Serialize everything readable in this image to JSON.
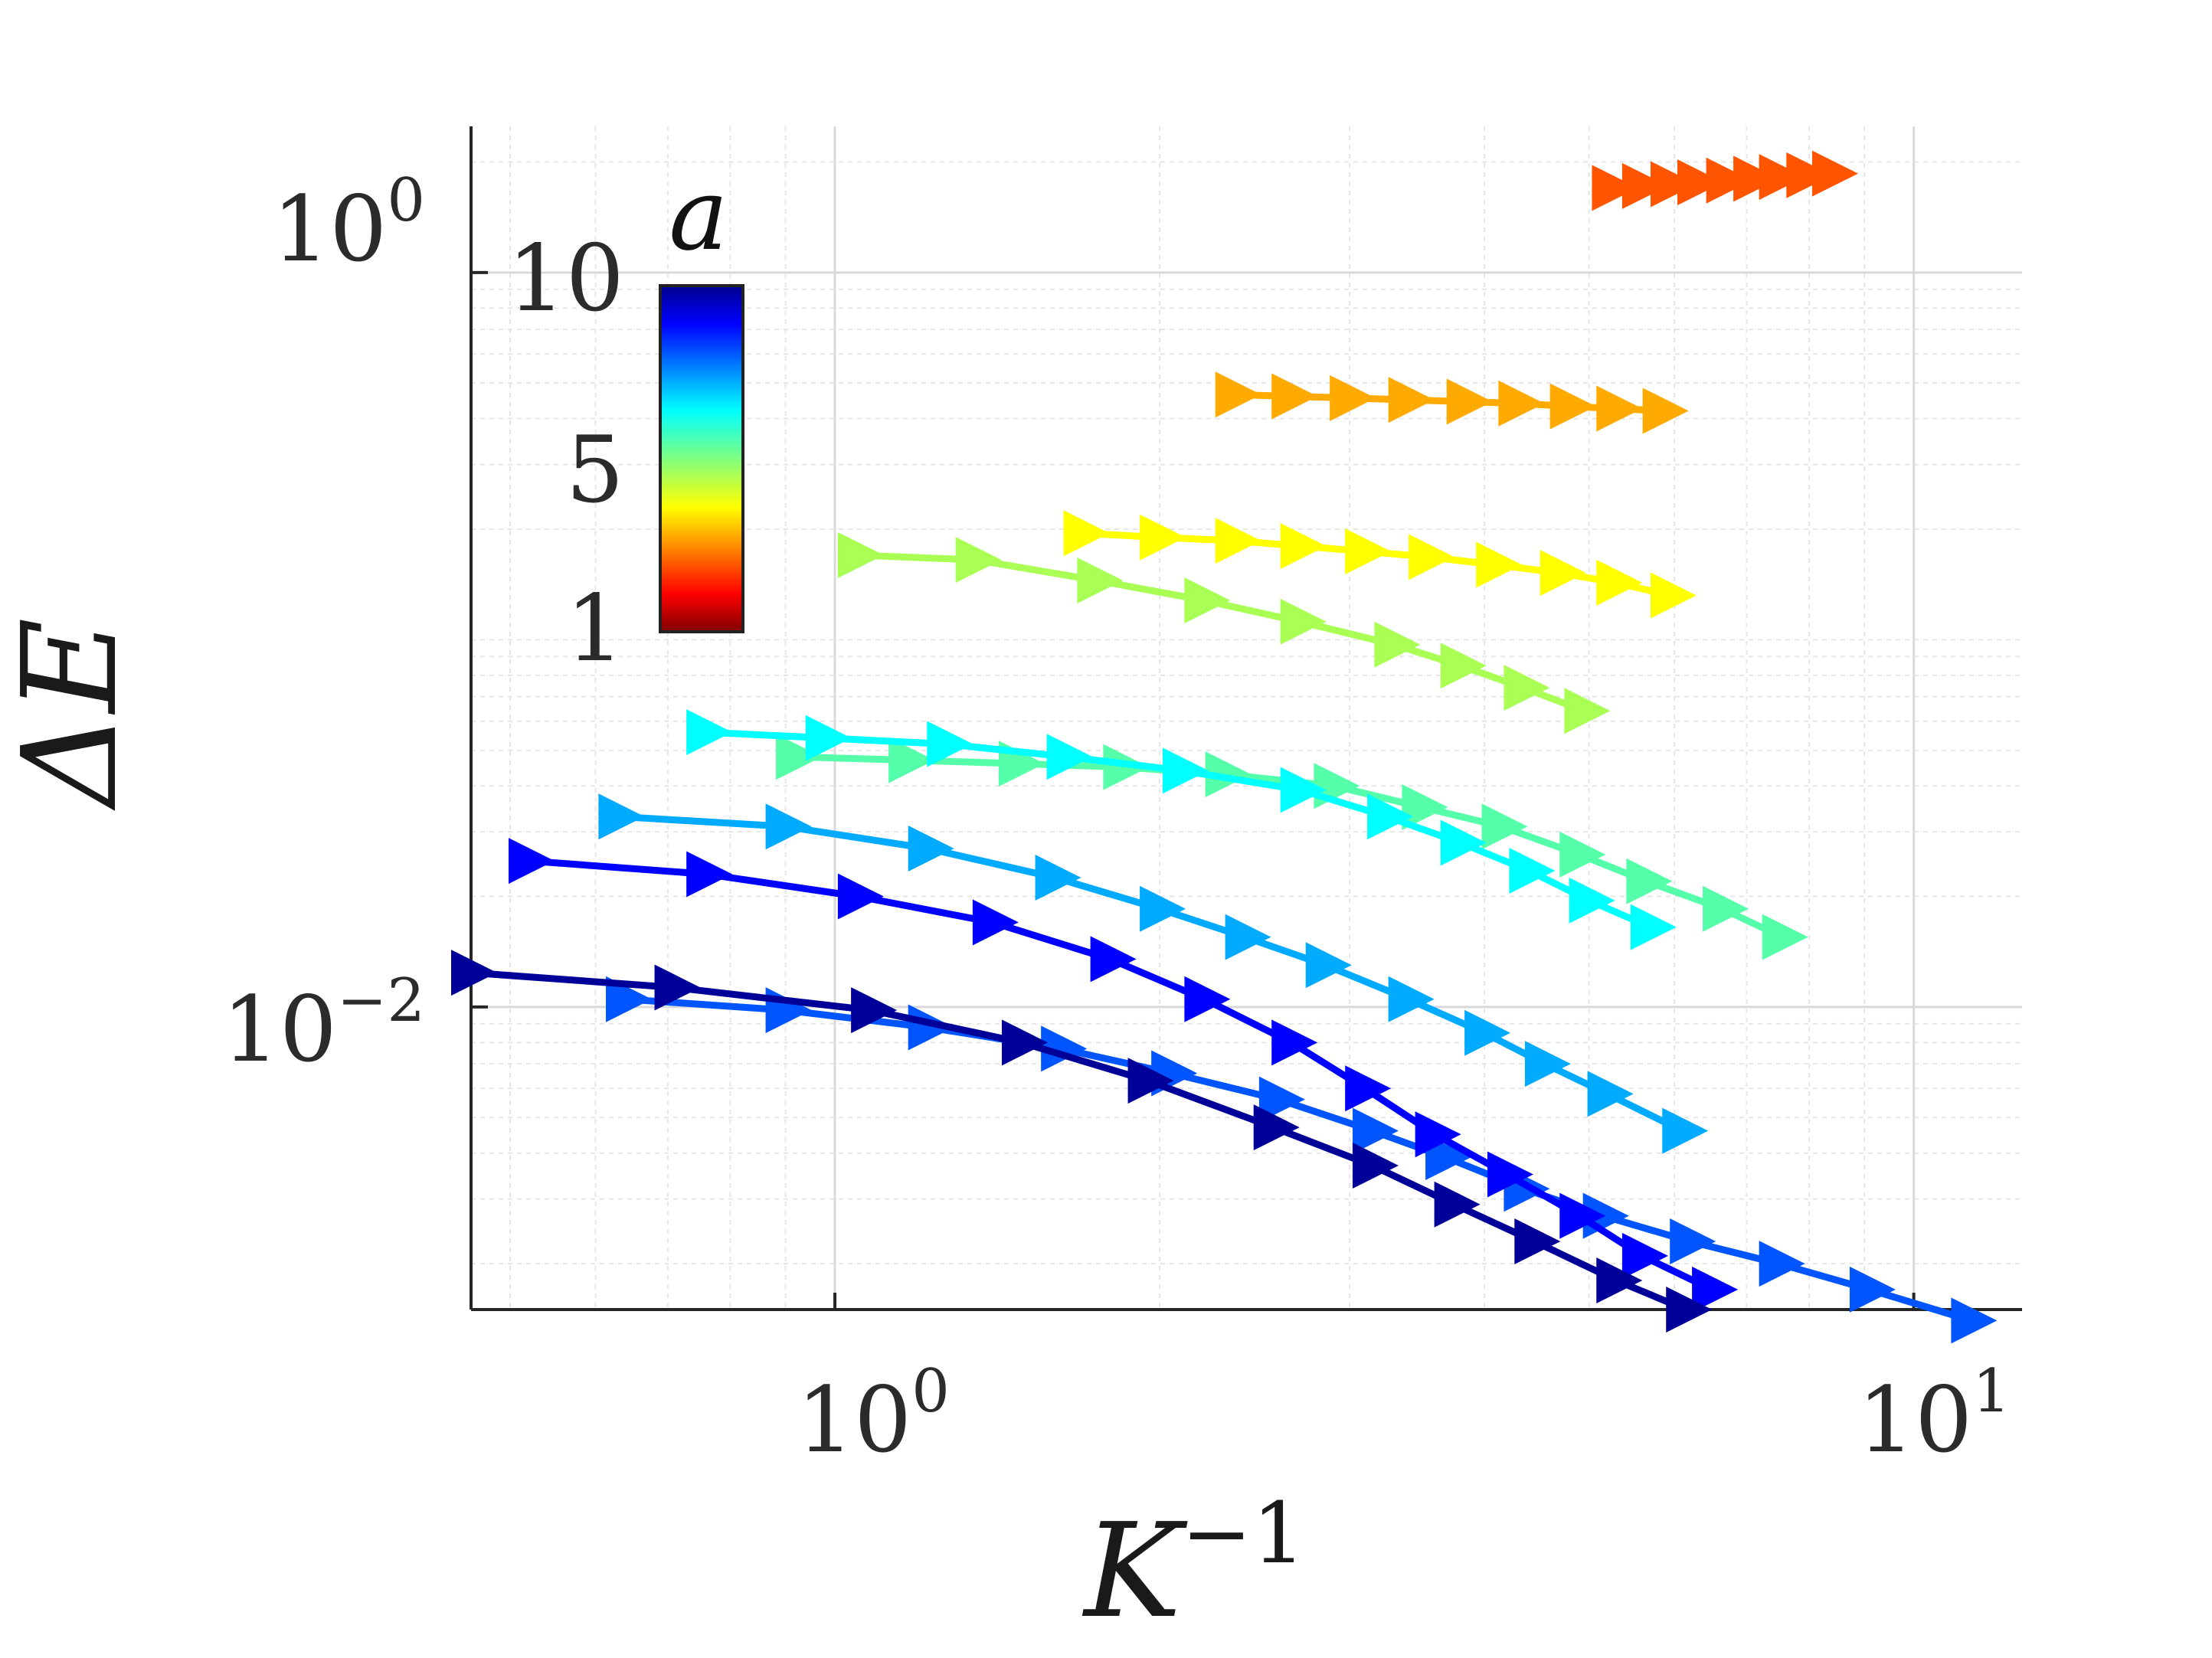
{
  "chart_data": {
    "type": "line",
    "title": "",
    "xlabel": "K",
    "xlabel_sup": "−1",
    "ylabel": "ΔE",
    "xscale": "log",
    "yscale": "log",
    "xlim": [
      0.46,
      12.6
    ],
    "ylim": [
      0.0015,
      2.5
    ],
    "x_ticks": [
      {
        "base": "10",
        "exp": "0",
        "value": 1
      },
      {
        "base": "10",
        "exp": "1",
        "value": 10
      }
    ],
    "y_ticks": [
      {
        "base": "10",
        "exp": "0",
        "value": 1
      },
      {
        "base": "10",
        "exp": "−2",
        "value": 0.01
      }
    ],
    "grid": true,
    "marker": "right-pointing triangle",
    "colorbar": {
      "label": "a",
      "min": 1,
      "max": 10,
      "ticks": [
        {
          "label": "10",
          "value": 10
        },
        {
          "label": "5",
          "value": 5
        },
        {
          "label": "1",
          "value": 1
        }
      ],
      "colormap": "jet",
      "position": "upper-left inside"
    },
    "series": [
      {
        "name": "a=2",
        "color": "#ff5500",
        "x": [
          5.25,
          5.6,
          5.95,
          6.3,
          6.7,
          7.1,
          7.5,
          7.95,
          8.4
        ],
        "y": [
          1.7,
          1.72,
          1.74,
          1.76,
          1.78,
          1.8,
          1.82,
          1.84,
          1.86
        ]
      },
      {
        "name": "a=3",
        "color": "#ffaa00",
        "x": [
          2.35,
          2.65,
          3.0,
          3.4,
          3.85,
          4.3,
          4.8,
          5.3,
          5.85
        ],
        "y": [
          0.465,
          0.46,
          0.455,
          0.45,
          0.445,
          0.44,
          0.432,
          0.426,
          0.42
        ]
      },
      {
        "name": "a=4",
        "color": "#ffff00",
        "x": [
          1.7,
          2.0,
          2.35,
          2.7,
          3.1,
          3.55,
          4.1,
          4.7,
          5.3,
          5.95
        ],
        "y": [
          0.195,
          0.19,
          0.186,
          0.18,
          0.174,
          0.168,
          0.16,
          0.152,
          0.143,
          0.132
        ]
      },
      {
        "name": "a=5",
        "color": "#aaff55",
        "x": [
          1.05,
          1.35,
          1.75,
          2.2,
          2.7,
          3.3,
          3.8,
          4.35,
          4.95
        ],
        "y": [
          0.17,
          0.165,
          0.145,
          0.128,
          0.112,
          0.097,
          0.085,
          0.074,
          0.064
        ]
      },
      {
        "name": "a=6",
        "color": "#55ffaa",
        "x": [
          0.92,
          1.17,
          1.48,
          1.85,
          2.3,
          2.9,
          3.5,
          4.15,
          4.9,
          5.65,
          6.65,
          7.55
        ],
        "y": [
          0.048,
          0.047,
          0.046,
          0.045,
          0.043,
          0.04,
          0.035,
          0.031,
          0.026,
          0.022,
          0.0185,
          0.0155
        ]
      },
      {
        "name": "a=7",
        "color": "#00ffff",
        "x": [
          0.76,
          0.98,
          1.27,
          1.64,
          2.1,
          2.7,
          3.25,
          3.8,
          4.4,
          5.0,
          5.7
        ],
        "y": [
          0.056,
          0.054,
          0.052,
          0.048,
          0.044,
          0.039,
          0.033,
          0.028,
          0.0235,
          0.0195,
          0.0165
        ]
      },
      {
        "name": "a=8",
        "color": "#00aaff",
        "x": [
          0.63,
          0.9,
          1.22,
          1.6,
          2.0,
          2.4,
          2.85,
          3.4,
          4.0,
          4.55,
          5.2,
          6.1
        ],
        "y": [
          0.033,
          0.031,
          0.027,
          0.0225,
          0.0185,
          0.0155,
          0.013,
          0.0105,
          0.0085,
          0.007,
          0.0058,
          0.0046
        ]
      },
      {
        "name": "a=9",
        "color": "#0055ff",
        "x": [
          0.64,
          0.9,
          1.22,
          1.62,
          2.05,
          2.58,
          3.15,
          3.68,
          4.35,
          5.15,
          6.2,
          7.5,
          9.1,
          11.3
        ],
        "y": [
          0.0105,
          0.0098,
          0.0088,
          0.0077,
          0.0066,
          0.0056,
          0.0046,
          0.0039,
          0.0032,
          0.0027,
          0.0023,
          0.002,
          0.0017,
          0.0014
        ]
      },
      {
        "name": "a=9.5",
        "color": "#0000ff",
        "x": [
          0.52,
          0.76,
          1.05,
          1.4,
          1.8,
          2.2,
          2.65,
          3.1,
          3.6,
          4.2,
          4.9,
          5.6,
          6.5
        ],
        "y": [
          0.025,
          0.023,
          0.02,
          0.017,
          0.0135,
          0.0105,
          0.008,
          0.006,
          0.0045,
          0.0035,
          0.0027,
          0.0021,
          0.0017
        ]
      },
      {
        "name": "a=10",
        "color": "#000099",
        "x": [
          0.46,
          0.71,
          1.08,
          1.49,
          1.95,
          2.55,
          3.15,
          3.75,
          4.45,
          5.3,
          6.15
        ],
        "y": [
          0.0124,
          0.0113,
          0.0098,
          0.008,
          0.0063,
          0.0047,
          0.0037,
          0.0029,
          0.0023,
          0.0018,
          0.0015
        ]
      }
    ]
  }
}
